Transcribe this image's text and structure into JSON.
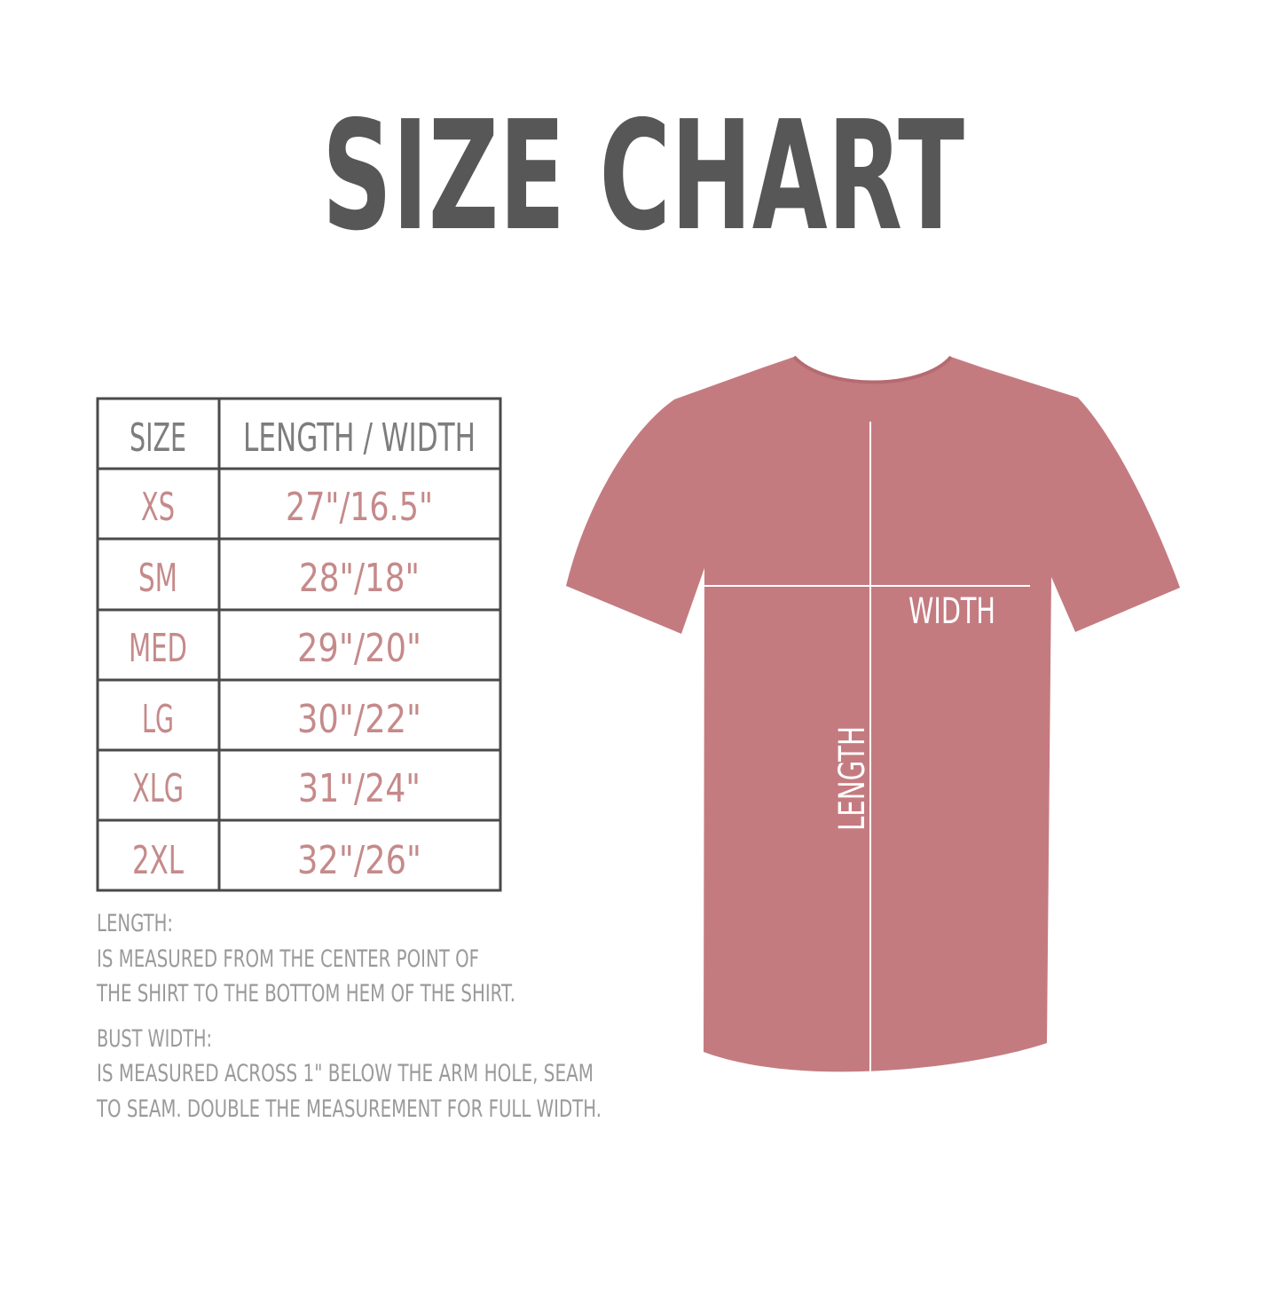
{
  "title": "SIZE CHART",
  "colors": {
    "title": "#575757",
    "header_text": "#7d7d7d",
    "cell_text": "#c58a8a",
    "shirt": "#c47b80",
    "note_text": "#9a9a9a",
    "table_border": "#4a4a4a"
  },
  "table": {
    "headers": [
      "SIZE",
      "LENGTH / WIDTH"
    ],
    "rows": [
      {
        "size": "XS",
        "measure": "27\"/16.5\""
      },
      {
        "size": "SM",
        "measure": "28\"/18\""
      },
      {
        "size": "MED",
        "measure": "29\"/20\""
      },
      {
        "size": "LG",
        "measure": "30\"/22\""
      },
      {
        "size": "XLG",
        "measure": "31\"/24\""
      },
      {
        "size": "2XL",
        "measure": "32\"/26\""
      }
    ]
  },
  "notes": {
    "length_label": "LENGTH:",
    "length_lines": [
      "IS MEASURED FROM THE CENTER POINT OF",
      "THE SHIRT TO THE BOTTOM HEM OF THE SHIRT."
    ],
    "width_label": "BUST WIDTH:",
    "width_lines": [
      "IS MEASURED ACROSS  1\" BELOW THE ARM HOLE, SEAM",
      "TO SEAM. DOUBLE THE MEASUREMENT FOR FULL WIDTH."
    ]
  },
  "shirt_labels": {
    "width": "WIDTH",
    "length": "LENGTH"
  }
}
